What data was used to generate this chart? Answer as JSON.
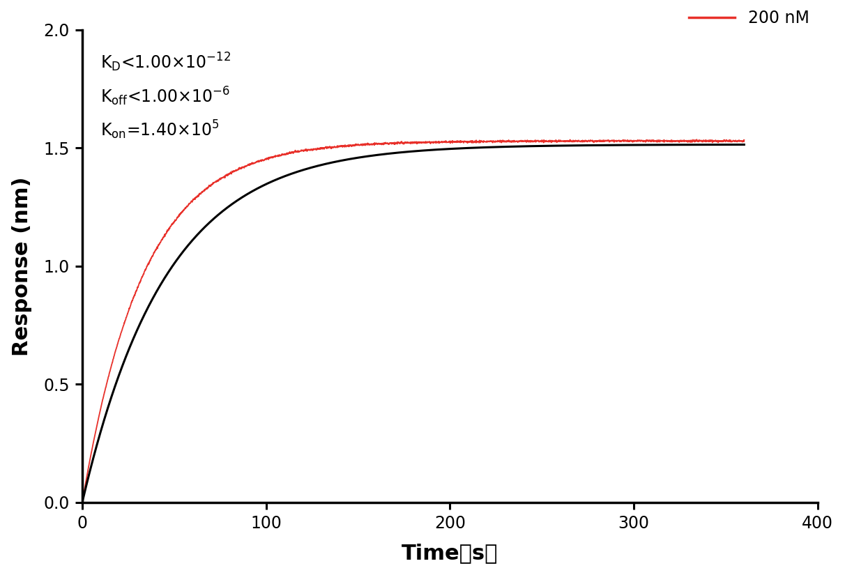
{
  "ylabel": "Response (nm)",
  "xlim": [
    0,
    400
  ],
  "ylim": [
    0.0,
    2.0
  ],
  "xticks": [
    0,
    100,
    200,
    300,
    400
  ],
  "yticks": [
    0.0,
    0.5,
    1.0,
    1.5,
    2.0
  ],
  "red_color": "#e8302a",
  "black_color": "#000000",
  "background_color": "#ffffff",
  "legend_label": "200 nM",
  "Rmax_black": 1.515,
  "Rmax_red": 1.53,
  "kobs_black": 0.022,
  "kobs_red": 0.03,
  "t_total": 360,
  "noise_amplitude": 0.004,
  "plateau_noise": 0.003
}
